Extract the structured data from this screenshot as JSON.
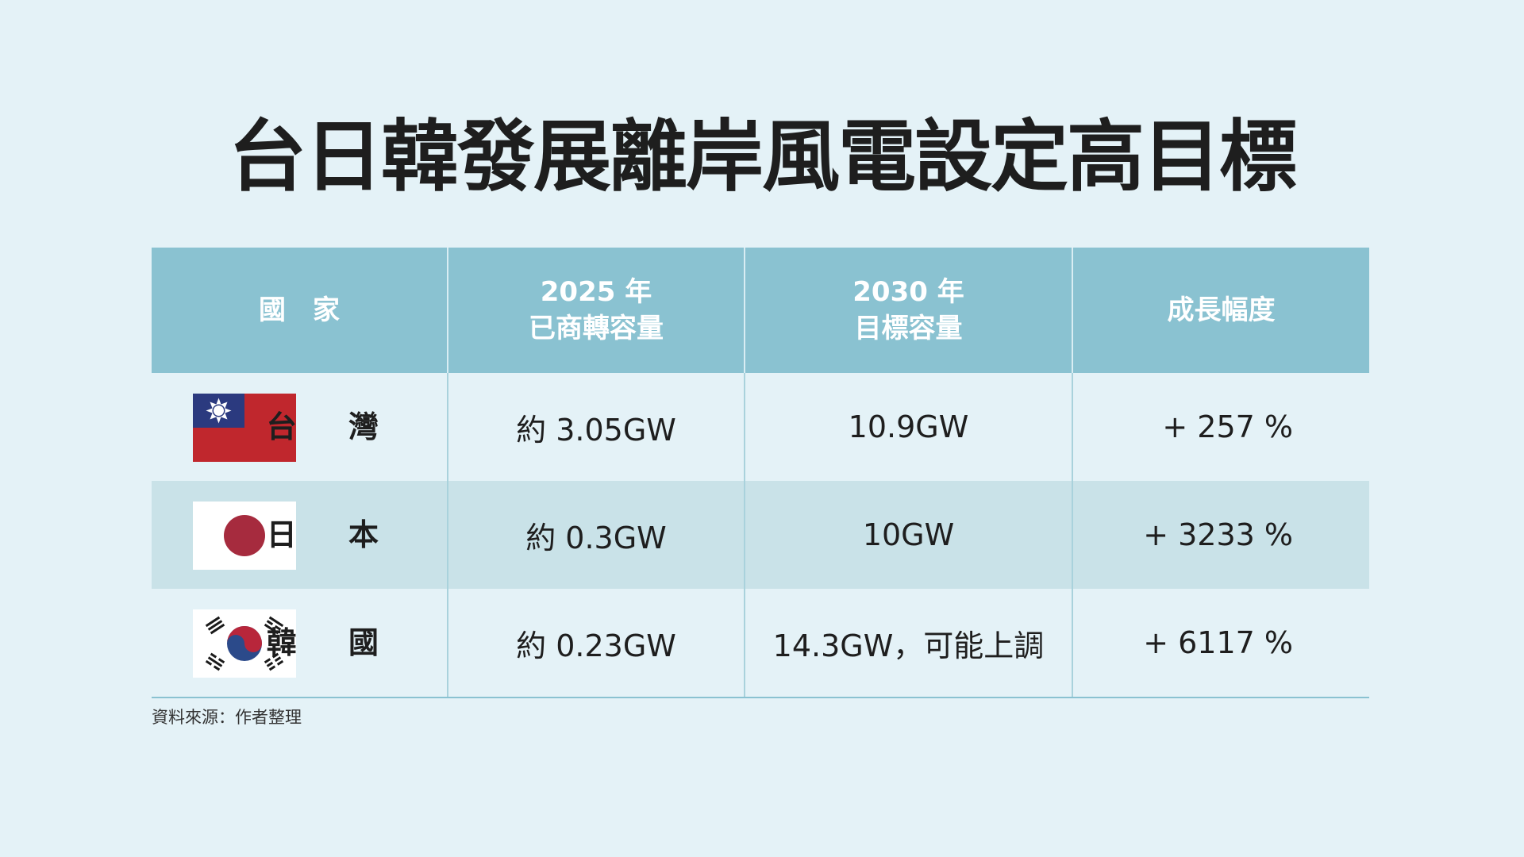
{
  "title": "台日韓發展離岸風電設定高目標",
  "chart_data": {
    "type": "table",
    "columns": [
      {
        "lines": [
          "國　家"
        ]
      },
      {
        "lines": [
          "2025 年",
          "已商轉容量"
        ]
      },
      {
        "lines": [
          "2030 年",
          "目標容量"
        ]
      },
      {
        "lines": [
          "成長幅度"
        ]
      }
    ],
    "rows": [
      {
        "country": "台灣",
        "country_display": "台 灣",
        "flag_icon": "taiwan-flag-icon",
        "capacity_2025": "約 3.05GW",
        "target_2030": "10.9GW",
        "growth": "+ 257 %"
      },
      {
        "country": "日本",
        "country_display": "日 本",
        "flag_icon": "japan-flag-icon",
        "capacity_2025": "約 0.3GW",
        "target_2030": "10GW",
        "growth": "+ 3233 %"
      },
      {
        "country": "韓國",
        "country_display": "韓 國",
        "flag_icon": "korea-flag-icon",
        "capacity_2025": "約 0.23GW",
        "target_2030": "14.3GW，可能上調",
        "growth": "+ 6117 %"
      }
    ]
  },
  "source": "資料來源：作者整理",
  "colors": {
    "background": "#e4f2f7",
    "header": "#8ac2d1",
    "row_alt": "#c9e2e8",
    "taiwan_red": "#c0272d",
    "taiwan_blue": "#2b3a7f",
    "japan_red": "#a62b3e",
    "korea_red": "#b8263b",
    "korea_blue": "#2b4a8a"
  }
}
